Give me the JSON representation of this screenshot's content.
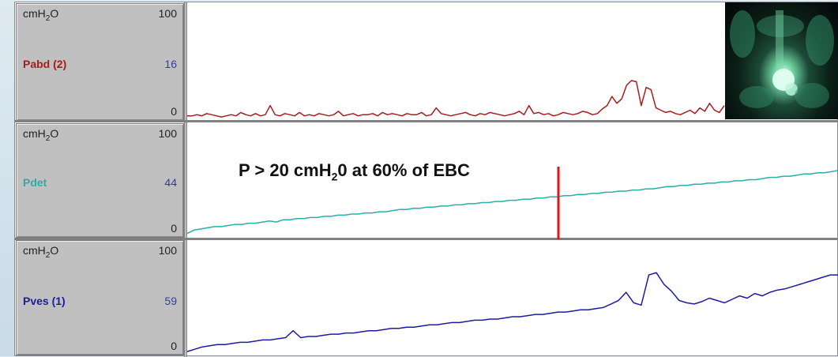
{
  "chart_data": [
    {
      "type": "line",
      "channel": "Pabd (2)",
      "unit": "cmH2O",
      "ylim": [
        0,
        100
      ],
      "current_value": "16",
      "color": "#a51c1c",
      "values": [
        3,
        3,
        4,
        3,
        5,
        4,
        3,
        2,
        3,
        4,
        3,
        6,
        4,
        3,
        5,
        3,
        4,
        12,
        4,
        3,
        5,
        4,
        3,
        6,
        3,
        4,
        3,
        5,
        4,
        3,
        4,
        7,
        3,
        4,
        5,
        3,
        4,
        4,
        5,
        3,
        6,
        4,
        5,
        4,
        3,
        5,
        4,
        4,
        6,
        3,
        4,
        10,
        5,
        4,
        3,
        4,
        5,
        6,
        4,
        3,
        5,
        4,
        6,
        5,
        4,
        3,
        4,
        5,
        7,
        4,
        12,
        5,
        6,
        4,
        5,
        3,
        4,
        6,
        5,
        4,
        5,
        7,
        6,
        4,
        5,
        9,
        12,
        20,
        14,
        18,
        30,
        34,
        33,
        12,
        28,
        26,
        10,
        8,
        6,
        7,
        5,
        4,
        6,
        8,
        5,
        10,
        7,
        14,
        8,
        6,
        12
      ]
    },
    {
      "type": "line",
      "channel": "Pdet",
      "unit": "cmH2O",
      "ylim": [
        0,
        100
      ],
      "current_value": "44",
      "color": "#2aafa8",
      "values": [
        3,
        6,
        7,
        8,
        9,
        9,
        10,
        11,
        11,
        12,
        12,
        13,
        14,
        13,
        15,
        15,
        16,
        16,
        17,
        17,
        18,
        18,
        19,
        19,
        20,
        20,
        21,
        21,
        22,
        22,
        23,
        24,
        24,
        25,
        25,
        26,
        26,
        27,
        27,
        28,
        28,
        29,
        29,
        30,
        30,
        31,
        31,
        32,
        32,
        33,
        33,
        34,
        34,
        35,
        35,
        36,
        36,
        37,
        37,
        38,
        38,
        39,
        39,
        40,
        40,
        41,
        41,
        42,
        42,
        43,
        44,
        44,
        45,
        45,
        46,
        46,
        47,
        47,
        48,
        48,
        49,
        49,
        50,
        50,
        51,
        52,
        52,
        53,
        53,
        54,
        55,
        55,
        56,
        56,
        57,
        58
      ]
    },
    {
      "type": "line",
      "channel": "Pves (1)",
      "unit": "cmH2O",
      "ylim": [
        0,
        100
      ],
      "current_value": "59",
      "color": "#1c1c9e",
      "values": [
        4,
        6,
        8,
        9,
        10,
        10,
        11,
        12,
        12,
        13,
        14,
        14,
        15,
        16,
        22,
        16,
        17,
        17,
        18,
        19,
        19,
        20,
        20,
        21,
        22,
        22,
        23,
        24,
        24,
        25,
        25,
        26,
        27,
        27,
        28,
        29,
        29,
        30,
        31,
        31,
        32,
        32,
        33,
        34,
        34,
        35,
        36,
        36,
        37,
        38,
        38,
        39,
        40,
        40,
        41,
        42,
        45,
        48,
        55,
        46,
        44,
        70,
        72,
        62,
        56,
        48,
        46,
        45,
        47,
        50,
        48,
        46,
        49,
        52,
        50,
        54,
        52,
        55,
        57,
        58,
        60,
        62,
        64,
        66,
        68,
        70,
        70
      ]
    },
    {
      "type": "annotation",
      "text": "P > 20 cmH20 at 60% of EBC"
    }
  ],
  "panels": [
    {
      "unit_main": "cmH",
      "unit_sub": "2",
      "unit_tail": "O",
      "max": "100",
      "min": "0",
      "name": "Pabd (2)",
      "value": "16"
    },
    {
      "unit_main": "cmH",
      "unit_sub": "2",
      "unit_tail": "O",
      "max": "100",
      "min": "0",
      "name": "Pdet",
      "value": "44"
    },
    {
      "unit_main": "cmH",
      "unit_sub": "2",
      "unit_tail": "O",
      "max": "100",
      "min": "0",
      "name": "Pves (1)",
      "value": "59"
    }
  ],
  "annotation": {
    "pre": "P > 20 cmH",
    "sub": "2",
    "post": "0 at 60% of EBC",
    "marker_color": "#e01515"
  },
  "colors": {
    "panel_bg": "#c0c0c0",
    "pabd": "#a51c1c",
    "pdet": "#2aafa8",
    "pves": "#1c1c9e",
    "marker": "#e01515"
  }
}
